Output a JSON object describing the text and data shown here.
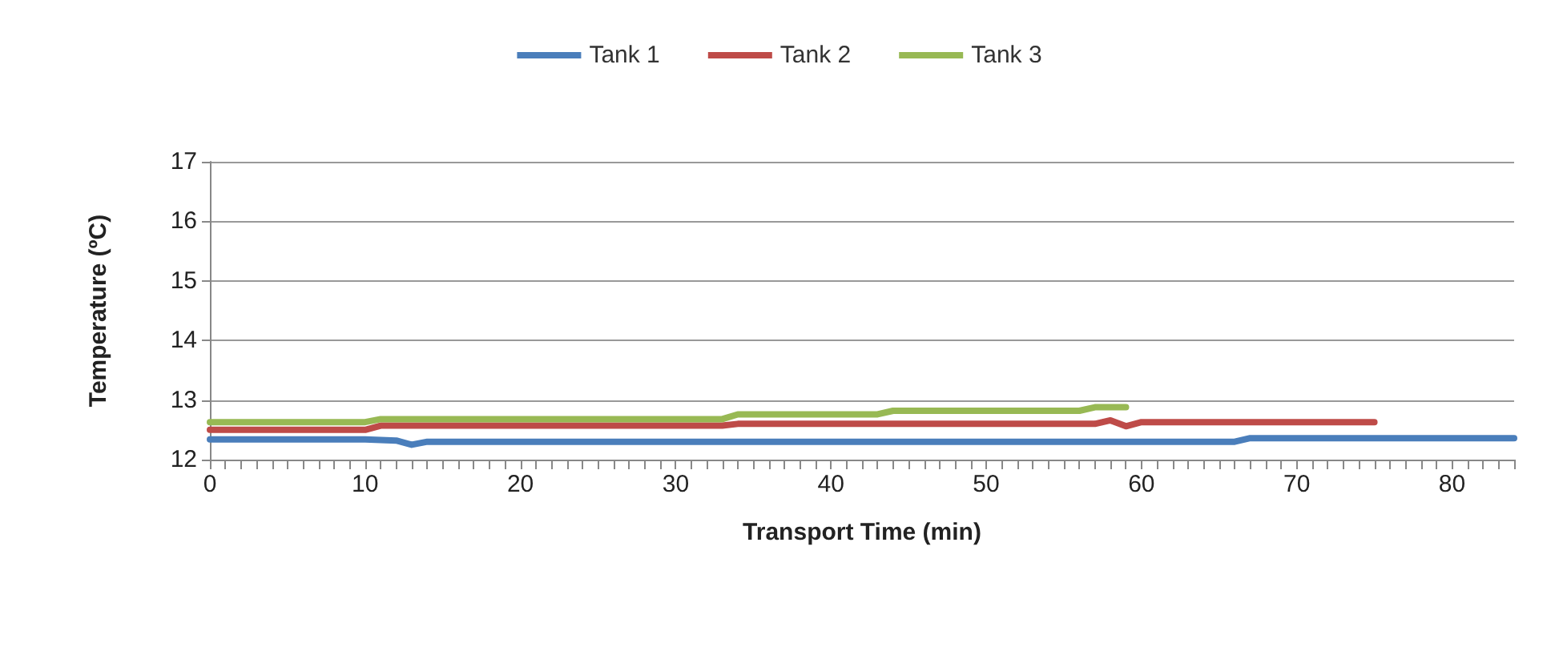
{
  "chart_data": {
    "type": "line",
    "xlabel": "Transport Time (min)",
    "ylabel": "Temperature (ºC)",
    "xlim": [
      0,
      84
    ],
    "xticks": [
      0,
      10,
      20,
      30,
      40,
      50,
      60,
      70,
      80
    ],
    "ylim": [
      12,
      17
    ],
    "yticks": [
      12,
      13,
      14,
      15,
      16,
      17
    ],
    "grid": "y",
    "legend": "top",
    "marker": "none",
    "line_style": "solid",
    "series": [
      {
        "name": "Tank 1",
        "color": "#4a7ebb",
        "x": [
          0,
          10,
          12,
          13,
          14,
          15,
          66,
          67,
          84
        ],
        "values": [
          12.34,
          12.34,
          12.32,
          12.25,
          12.3,
          12.3,
          12.3,
          12.36,
          12.36
        ]
      },
      {
        "name": "Tank 2",
        "color": "#be4b48",
        "x": [
          0,
          10,
          11,
          33,
          34,
          57,
          58,
          59,
          60,
          75
        ],
        "values": [
          12.5,
          12.5,
          12.57,
          12.57,
          12.6,
          12.6,
          12.66,
          12.56,
          12.63,
          12.63
        ]
      },
      {
        "name": "Tank 3",
        "color": "#98b954",
        "x": [
          0,
          10,
          11,
          33,
          34,
          43,
          44,
          56,
          57,
          59
        ],
        "values": [
          12.63,
          12.63,
          12.68,
          12.68,
          12.76,
          12.76,
          12.82,
          12.82,
          12.88,
          12.88
        ]
      }
    ]
  }
}
